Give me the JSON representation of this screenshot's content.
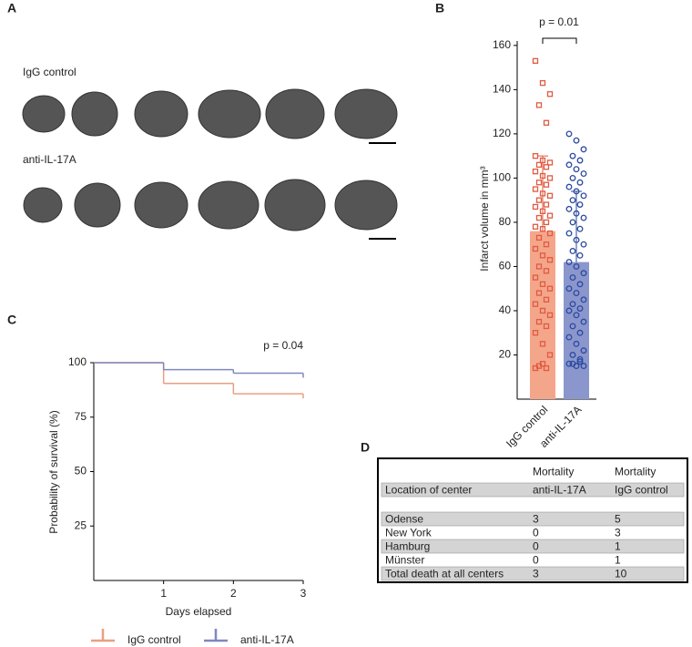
{
  "panel_labels": [
    "A",
    "B",
    "C",
    "D"
  ],
  "panel_a": {
    "rows": [
      "IgG control",
      "anti-IL-17A"
    ]
  },
  "chart_data": [
    {
      "type": "bar-scatter",
      "annotation": "p = 0.01",
      "y_label": "Infarct volume in mm³",
      "categories": [
        "IgG control",
        "anti-IL-17A"
      ],
      "values": [
        76,
        62
      ],
      "errors": [
        34,
        32
      ],
      "colors": [
        "#f4a68b",
        "#8b96cc"
      ],
      "point_colors": [
        "#e05a40",
        "#2b4aa0"
      ],
      "points": [
        [
          153,
          143,
          138,
          133,
          125,
          110,
          108,
          107,
          106,
          105,
          103,
          101,
          100,
          98,
          97,
          95,
          93,
          92,
          90,
          88,
          87,
          85,
          83,
          82,
          80,
          78,
          77,
          75,
          73,
          70,
          68,
          65,
          63,
          60,
          58,
          55,
          52,
          50,
          48,
          45,
          43,
          40,
          38,
          35,
          33,
          30,
          25,
          20,
          15,
          14,
          14,
          16
        ],
        [
          120,
          117,
          113,
          110,
          108,
          106,
          104,
          102,
          100,
          98,
          96,
          94,
          92,
          90,
          88,
          86,
          84,
          82,
          80,
          77,
          75,
          72,
          70,
          67,
          65,
          62,
          60,
          57,
          55,
          52,
          50,
          48,
          45,
          43,
          41,
          40,
          38,
          35,
          33,
          30,
          28,
          25,
          22,
          20,
          18,
          16,
          15,
          15,
          16,
          17
        ]
      ],
      "ylim": [
        0,
        162
      ],
      "yticks": [
        20,
        40,
        60,
        80,
        100,
        120,
        140,
        160
      ]
    },
    {
      "type": "step",
      "annotation": "p = 0.04",
      "x_label": "Days elapsed",
      "y_label": "Probability of survival (%)",
      "x": [
        0,
        1,
        2,
        3
      ],
      "series": [
        {
          "name": "IgG control",
          "color": "#e8a083",
          "values": [
            100,
            90.5,
            85.7,
            85.7
          ]
        },
        {
          "name": "anti-IL-17A",
          "color": "#8088bd",
          "values": [
            100,
            96.8,
            95.2,
            95.2
          ]
        }
      ],
      "xlim": [
        0,
        3
      ],
      "xticks": [
        1,
        2,
        3
      ],
      "ylim": [
        0,
        100
      ],
      "yticks": [
        25,
        50,
        75,
        100
      ]
    }
  ],
  "table": {
    "rows": [
      [
        "",
        "Mortality",
        "Mortality"
      ],
      [
        "Location of center",
        "anti-IL-17A",
        "IgG control"
      ],
      [
        "",
        "",
        ""
      ],
      [
        "Odense",
        3,
        5
      ],
      [
        "New York",
        0,
        3
      ],
      [
        "Hamburg",
        0,
        1
      ],
      [
        "Münster",
        0,
        1
      ],
      [
        "Total death at all centers",
        3,
        10
      ]
    ]
  }
}
